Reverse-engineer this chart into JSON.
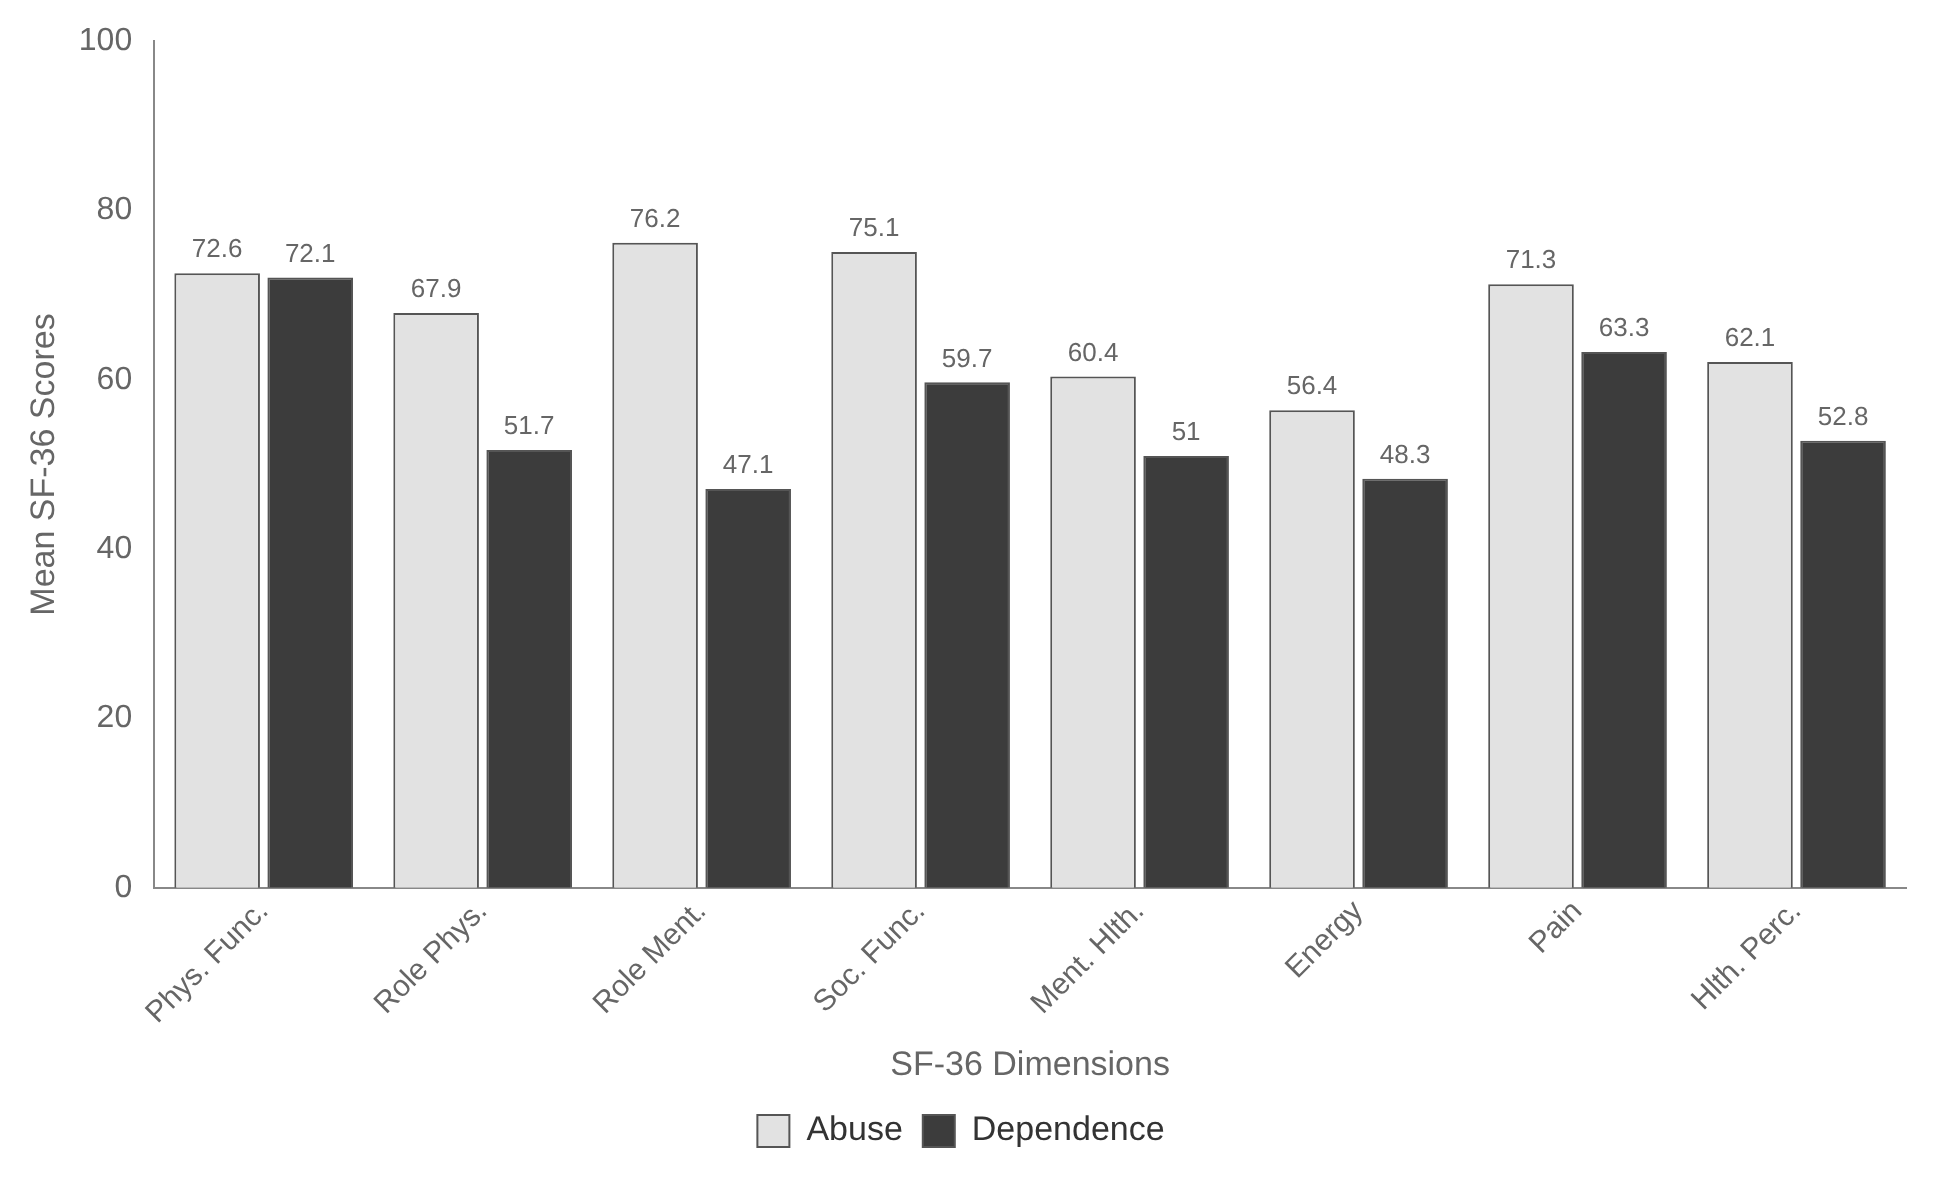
{
  "chart_data": {
    "type": "bar",
    "xlabel": "SF-36 Dimensions",
    "ylabel": "Mean SF-36 Scores",
    "categories": [
      "Phys. Func.",
      "Role Phys.",
      "Role Ment.",
      "Soc. Func.",
      "Ment. Hlth.",
      "Energy",
      "Pain",
      "Hlth. Perc."
    ],
    "series": [
      {
        "name": "Abuse",
        "color": "#e2e2e2",
        "values": [
          72.6,
          67.9,
          76.2,
          75.1,
          60.4,
          56.4,
          71.3,
          62.1
        ]
      },
      {
        "name": "Dependence",
        "color": "#3c3c3c",
        "values": [
          72.1,
          51.7,
          47.1,
          59.7,
          51,
          48.3,
          63.3,
          52.8
        ]
      }
    ],
    "ylim": [
      0,
      100
    ],
    "yticks": [
      0,
      20,
      40,
      60,
      80,
      100
    ],
    "grid": false,
    "legend": "bottom",
    "data_labels": true
  }
}
